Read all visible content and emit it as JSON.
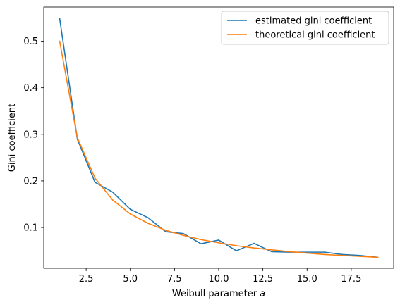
{
  "chart_data": {
    "type": "line",
    "title": "",
    "xlabel": "Weibull parameter a",
    "xlabel_parts": {
      "text": "Weibull parameter ",
      "italic": "a"
    },
    "ylabel": "Gini coefficient",
    "xlim": [
      0.1,
      19.9
    ],
    "ylim": [
      0.0124,
      0.5734
    ],
    "xticks": [
      2.5,
      5.0,
      7.5,
      10.0,
      12.5,
      15.0,
      17.5
    ],
    "xtick_labels": [
      "2.5",
      "5.0",
      "7.5",
      "10.0",
      "12.5",
      "15.0",
      "17.5"
    ],
    "yticks": [
      0.1,
      0.2,
      0.3,
      0.4,
      0.5
    ],
    "ytick_labels": [
      "0.1",
      "0.2",
      "0.3",
      "0.4",
      "0.5"
    ],
    "grid": false,
    "legend_position": "top-right",
    "x": [
      1,
      2,
      3,
      4,
      5,
      6,
      7,
      8,
      9,
      10,
      11,
      12,
      13,
      14,
      15,
      16,
      17,
      18,
      19
    ],
    "series": [
      {
        "name": "estimated gini coefficient",
        "color": "#1f77b4",
        "values": [
          0.549,
          0.29,
          0.197,
          0.176,
          0.139,
          0.121,
          0.091,
          0.087,
          0.065,
          0.073,
          0.05,
          0.066,
          0.048,
          0.047,
          0.047,
          0.047,
          0.042,
          0.04,
          0.036
        ]
      },
      {
        "name": "theoretical gini coefficient",
        "color": "#ff7f0e",
        "values": [
          0.5,
          0.293,
          0.206,
          0.159,
          0.129,
          0.109,
          0.094,
          0.083,
          0.074,
          0.067,
          0.061,
          0.056,
          0.052,
          0.048,
          0.045,
          0.042,
          0.04,
          0.038,
          0.036
        ]
      }
    ]
  }
}
